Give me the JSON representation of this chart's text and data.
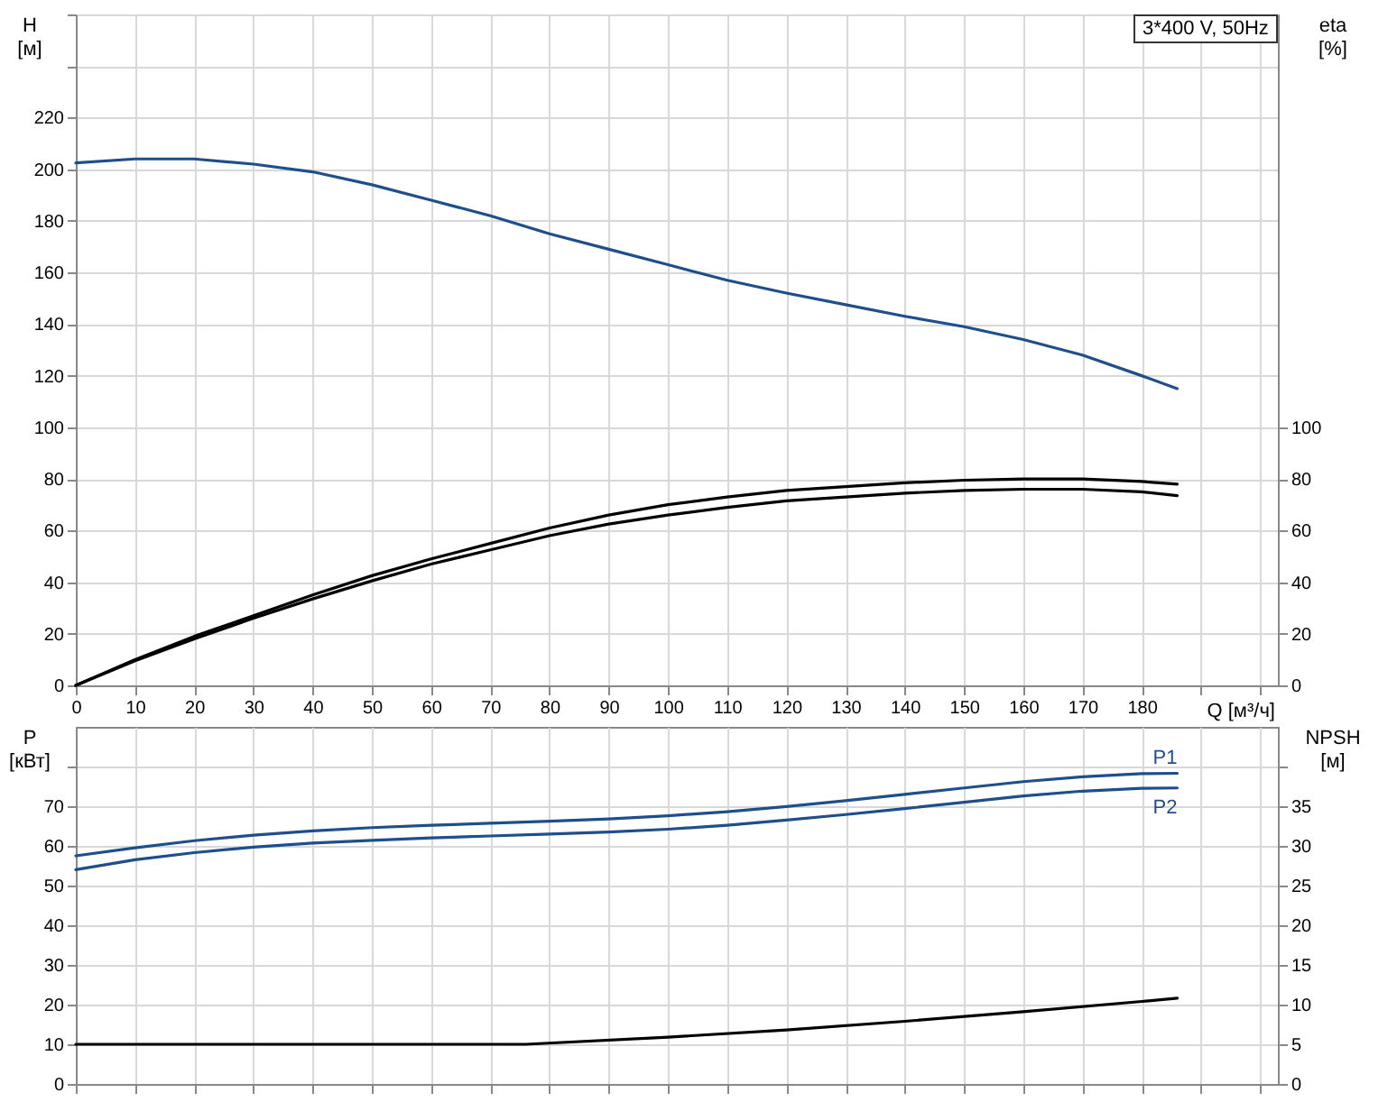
{
  "chart_data": [
    {
      "type": "line",
      "xlabel": "Q [м³/ч]",
      "ylabel": "H [м]",
      "y2label": "eta [%]",
      "annotations": [
        "3*400 V, 50Hz"
      ],
      "grid": true,
      "x": [
        0,
        10,
        20,
        30,
        40,
        50,
        60,
        70,
        80,
        90,
        100,
        110,
        120,
        130,
        140,
        150,
        160,
        170,
        180,
        186
      ],
      "xlim": [
        0,
        203
      ],
      "xticks": [
        0,
        10,
        20,
        30,
        40,
        50,
        60,
        70,
        80,
        90,
        100,
        110,
        120,
        130,
        140,
        150,
        160,
        170,
        180,
        {
          "value": 190,
          "label": null
        },
        {
          "value": 200,
          "label": null
        }
      ],
      "ylim": [
        0,
        260
      ],
      "yticks": [
        0,
        20,
        40,
        60,
        80,
        100,
        120,
        140,
        160,
        180,
        200,
        220,
        {
          "value": 240,
          "label": null
        },
        {
          "value": 260,
          "label": null
        }
      ],
      "y2lim": [
        0,
        260
      ],
      "y2ticks": [
        0,
        20,
        40,
        60,
        80,
        100
      ],
      "series": [
        {
          "color": "#1f4e8c",
          "values": [
            202.5,
            204,
            204,
            202,
            199,
            194,
            188,
            182,
            175,
            169,
            163,
            157,
            152,
            147.5,
            143,
            139,
            134,
            128,
            120,
            115
          ]
        },
        {
          "color": "#000000",
          "axis": "y2",
          "values": [
            0,
            10,
            19,
            27,
            35,
            42.5,
            49,
            55,
            61,
            66,
            70,
            73,
            75.5,
            77,
            78.5,
            79.5,
            80,
            80,
            79,
            78
          ]
        },
        {
          "color": "#000000",
          "axis": "y2",
          "values": [
            0,
            9.5,
            18,
            26,
            33.5,
            40.5,
            47,
            52.5,
            58,
            62.5,
            66,
            69,
            71.5,
            73,
            74.5,
            75.5,
            76,
            76,
            75,
            73.5
          ]
        }
      ]
    },
    {
      "type": "line",
      "ylabel": "P [кВт]",
      "y2label": "NPSH [м]",
      "grid": true,
      "tick_labels": "y",
      "x": [
        0,
        10,
        20,
        30,
        40,
        50,
        60,
        70,
        80,
        90,
        100,
        110,
        120,
        130,
        140,
        150,
        160,
        170,
        180,
        186
      ],
      "xlim": [
        0,
        203
      ],
      "xticks": [
        0,
        10,
        20,
        30,
        40,
        50,
        60,
        70,
        80,
        90,
        100,
        110,
        120,
        130,
        140,
        150,
        160,
        170,
        180,
        190,
        200
      ],
      "ylim": [
        0,
        90
      ],
      "yticks": [
        0,
        10,
        20,
        30,
        40,
        50,
        60,
        70,
        {
          "value": 80,
          "label": null
        }
      ],
      "y2lim": [
        0,
        45
      ],
      "y2ticks": [
        0,
        5,
        10,
        15,
        20,
        25,
        30,
        35,
        {
          "value": 40,
          "label": null
        }
      ],
      "series": [
        {
          "name": "P1",
          "color": "#1f4e8c",
          "values": [
            57.5,
            59.5,
            61.3,
            62.7,
            63.8,
            64.6,
            65.2,
            65.7,
            66.2,
            66.8,
            67.6,
            68.6,
            69.9,
            71.4,
            73,
            74.6,
            76.2,
            77.4,
            78.2,
            78.3
          ]
        },
        {
          "name": "P2",
          "color": "#1f4e8c",
          "values": [
            54,
            56.5,
            58.3,
            59.7,
            60.7,
            61.4,
            62,
            62.5,
            63,
            63.5,
            64.2,
            65.2,
            66.5,
            67.9,
            69.4,
            71,
            72.6,
            73.8,
            74.5,
            74.6
          ]
        },
        {
          "color": "#000000",
          "axis": "y2",
          "x": [
            0,
            76,
            100,
            120,
            140,
            160,
            180,
            186
          ],
          "values": [
            5,
            5,
            5.9,
            6.8,
            7.9,
            9.1,
            10.4,
            10.8
          ]
        }
      ]
    }
  ]
}
